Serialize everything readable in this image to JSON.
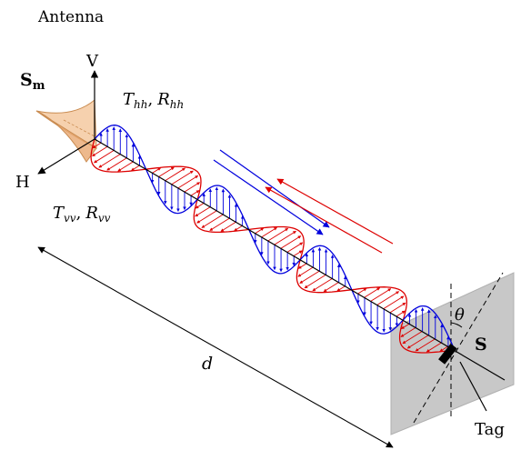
{
  "labels": {
    "antenna": "Antenna",
    "sm": "S",
    "sm_sub": "m",
    "v_axis": "V",
    "h_axis": "H",
    "t_hh": "T",
    "t_hh_sub": "hh",
    "r_hh": "R",
    "r_hh_sub": "hh",
    "t_vv": "T",
    "t_vv_sub": "vv",
    "r_vv": "R",
    "r_vv_sub": "vv",
    "comma": ",",
    "distance": "d",
    "theta": "θ",
    "s": "S",
    "tag": "Tag"
  },
  "colors": {
    "h_wave": "#0000dd",
    "v_wave": "#dd0000",
    "horn": "#f5c9a0",
    "horn_edge": "#c98b50",
    "plate": "#c8c8c8",
    "forward_arrow": "#0000dd",
    "return_arrow": "#dd0000"
  },
  "wave": {
    "cycles": 3.5,
    "arrows_per_cycle": 16
  }
}
